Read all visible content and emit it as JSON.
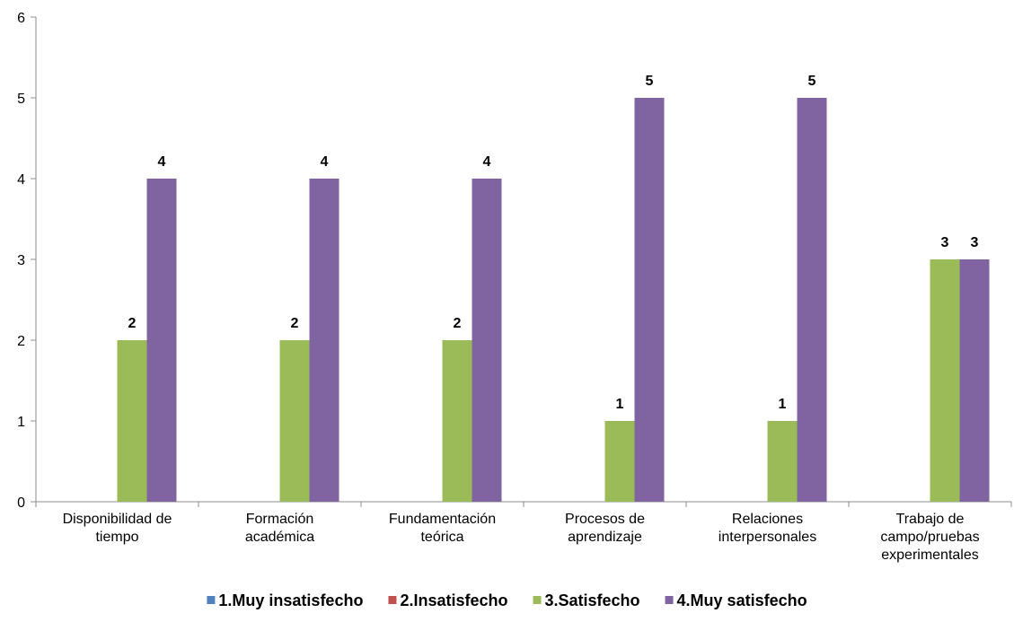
{
  "chart_data": {
    "type": "bar",
    "categories": [
      [
        "Disponibilidad de",
        "tiempo"
      ],
      [
        "Formación",
        "académica"
      ],
      [
        "Fundamentación",
        "teórica"
      ],
      [
        "Procesos de",
        "aprendizaje"
      ],
      [
        "Relaciones",
        "interpersonales"
      ],
      [
        "Trabajo de",
        "campo/pruebas",
        "experimentales"
      ]
    ],
    "series": [
      {
        "name": "1.Muy insatisfecho",
        "color": "#4f81bd",
        "values": [
          0,
          0,
          0,
          0,
          0,
          0
        ]
      },
      {
        "name": "2.Insatisfecho",
        "color": "#c0504d",
        "values": [
          0,
          0,
          0,
          0,
          0,
          0
        ]
      },
      {
        "name": "3.Satisfecho",
        "color": "#9bbb59",
        "values": [
          2,
          2,
          2,
          1,
          1,
          3
        ]
      },
      {
        "name": "4.Muy satisfecho",
        "color": "#8064a2",
        "values": [
          4,
          4,
          4,
          5,
          5,
          3
        ]
      }
    ],
    "ylim": [
      0,
      6
    ],
    "yticks": [
      0,
      1,
      2,
      3,
      4,
      5,
      6
    ],
    "grid": false,
    "legend_position": "bottom",
    "data_labels_series": [
      "3.Satisfecho",
      "4.Muy satisfecho"
    ]
  }
}
